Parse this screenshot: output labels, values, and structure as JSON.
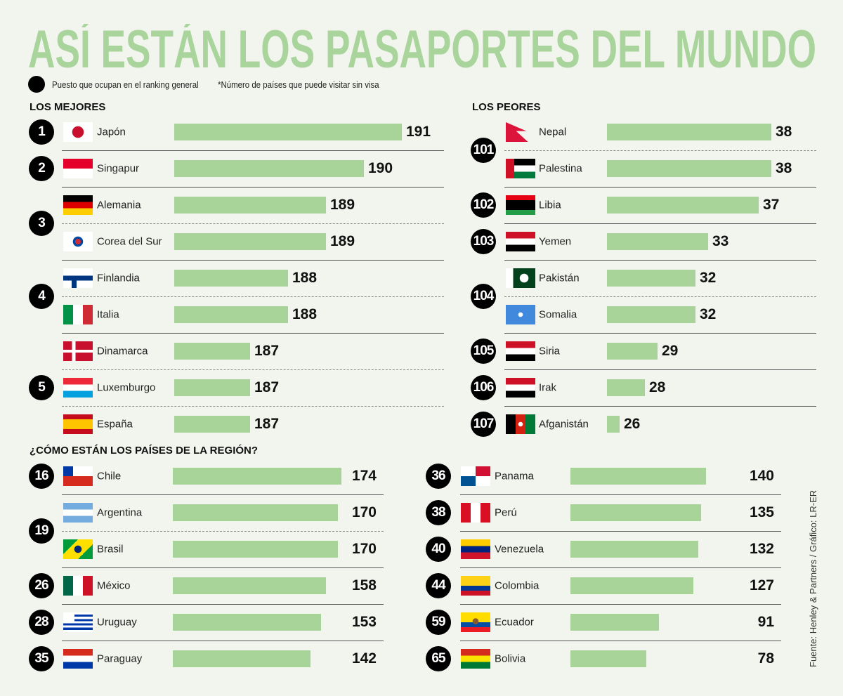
{
  "title": "ASÍ ESTÁN LOS PASAPORTES DEL MUNDO",
  "colors": {
    "title": "#a9d49c",
    "bar": "#a8d49a",
    "background": "#f2f5ee",
    "rank_circle": "#000000"
  },
  "legend": {
    "dot_label": "Puesto que ocupan en el ranking general",
    "note": "*Número de países que puede visitar sin visa"
  },
  "source": "Fuente:  Henley & Partners / Gráfico: LR-ER",
  "chart_data": [
    {
      "type": "bar",
      "title": "LOS MEJORES",
      "groups": [
        {
          "rank": "1",
          "countries": [
            {
              "name": "Japón",
              "flag": "japan-flag",
              "value": 191
            }
          ]
        },
        {
          "rank": "2",
          "countries": [
            {
              "name": "Singapur",
              "flag": "singapore-flag",
              "value": 190
            }
          ]
        },
        {
          "rank": "3",
          "countries": [
            {
              "name": "Alemania",
              "flag": "germany-flag",
              "value": 189
            },
            {
              "name": "Corea del Sur",
              "flag": "south-korea-flag",
              "value": 189
            }
          ]
        },
        {
          "rank": "4",
          "countries": [
            {
              "name": "Finlandia",
              "flag": "finland-flag",
              "value": 188
            },
            {
              "name": "Italia",
              "flag": "italy-flag",
              "value": 188
            }
          ]
        },
        {
          "rank": "5",
          "countries": [
            {
              "name": "Dinamarca",
              "flag": "denmark-flag",
              "value": 187
            },
            {
              "name": "Luxemburgo",
              "flag": "luxembourg-flag",
              "value": 187
            },
            {
              "name": "España",
              "flag": "spain-flag",
              "value": 187
            }
          ]
        }
      ]
    },
    {
      "type": "bar",
      "title": "LOS PEORES",
      "groups": [
        {
          "rank": "101",
          "countries": [
            {
              "name": "Nepal",
              "flag": "nepal-flag",
              "value": 38
            },
            {
              "name": "Palestina",
              "flag": "palestine-flag",
              "value": 38
            }
          ]
        },
        {
          "rank": "102",
          "countries": [
            {
              "name": "Libia",
              "flag": "libya-flag",
              "value": 37
            }
          ]
        },
        {
          "rank": "103",
          "countries": [
            {
              "name": "Yemen",
              "flag": "yemen-flag",
              "value": 33
            }
          ]
        },
        {
          "rank": "104",
          "countries": [
            {
              "name": "Pakistán",
              "flag": "pakistan-flag",
              "value": 32
            },
            {
              "name": "Somalia",
              "flag": "somalia-flag",
              "value": 32
            }
          ]
        },
        {
          "rank": "105",
          "countries": [
            {
              "name": "Siria",
              "flag": "syria-flag",
              "value": 29
            }
          ]
        },
        {
          "rank": "106",
          "countries": [
            {
              "name": "Irak",
              "flag": "iraq-flag",
              "value": 28
            }
          ]
        },
        {
          "rank": "107",
          "countries": [
            {
              "name": "Afganistán",
              "flag": "afghanistan-flag",
              "value": 26
            }
          ]
        }
      ]
    },
    {
      "type": "bar",
      "title": "¿CÓMO ESTÁN LOS PAÍSES DE LA REGIÓN?",
      "groups": [
        {
          "rank": "16",
          "countries": [
            {
              "name": "Chile",
              "flag": "chile-flag",
              "value": 174
            }
          ]
        },
        {
          "rank": "19",
          "countries": [
            {
              "name": "Argentina",
              "flag": "argentina-flag",
              "value": 170
            },
            {
              "name": "Brasil",
              "flag": "brazil-flag",
              "value": 170
            }
          ]
        },
        {
          "rank": "26",
          "countries": [
            {
              "name": "México",
              "flag": "mexico-flag",
              "value": 158
            }
          ]
        },
        {
          "rank": "28",
          "countries": [
            {
              "name": "Uruguay",
              "flag": "uruguay-flag",
              "value": 153
            }
          ]
        },
        {
          "rank": "35",
          "countries": [
            {
              "name": "Paraguay",
              "flag": "paraguay-flag",
              "value": 142
            }
          ]
        }
      ]
    },
    {
      "type": "bar",
      "title": "",
      "groups": [
        {
          "rank": "36",
          "countries": [
            {
              "name": "Panama",
              "flag": "panama-flag",
              "value": 140
            }
          ]
        },
        {
          "rank": "38",
          "countries": [
            {
              "name": "Perú",
              "flag": "peru-flag",
              "value": 135
            }
          ]
        },
        {
          "rank": "40",
          "countries": [
            {
              "name": "Venezuela",
              "flag": "venezuela-flag",
              "value": 132
            }
          ]
        },
        {
          "rank": "44",
          "countries": [
            {
              "name": "Colombia",
              "flag": "colombia-flag",
              "value": 127
            }
          ]
        },
        {
          "rank": "59",
          "countries": [
            {
              "name": "Ecuador",
              "flag": "ecuador-flag",
              "value": 91
            }
          ]
        },
        {
          "rank": "65",
          "countries": [
            {
              "name": "Bolivia",
              "flag": "bolivia-flag",
              "value": 78
            }
          ]
        }
      ]
    }
  ]
}
